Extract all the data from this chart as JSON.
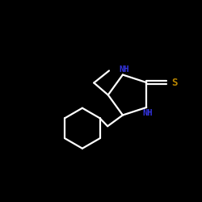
{
  "background_color": "#000000",
  "bond_color": "#ffffff",
  "N_color": "#3333dd",
  "S_color": "#bb8800",
  "bond_width": 1.6,
  "figsize": [
    2.5,
    2.5
  ],
  "dpi": 100,
  "xlim": [
    0,
    10
  ],
  "ylim": [
    0,
    10
  ]
}
